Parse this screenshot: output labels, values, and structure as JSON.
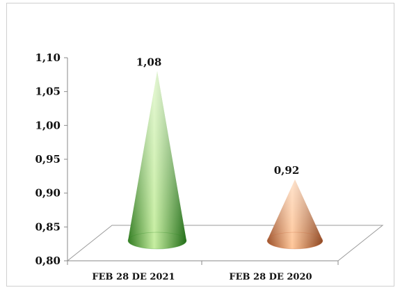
{
  "chart_data": {
    "type": "bar",
    "shape": "cone",
    "title": "",
    "xlabel": "",
    "ylabel": "",
    "categories": [
      "FEB 28 DE 2021",
      "FEB 28 DE 2020"
    ],
    "values": [
      1.08,
      0.92
    ],
    "value_labels": [
      "1,08",
      "0,92"
    ],
    "ylim": [
      0.8,
      1.1
    ],
    "yticks": [
      0.8,
      0.85,
      0.9,
      0.95,
      1.0,
      1.05,
      1.1
    ],
    "ytick_labels": [
      "0,80",
      "0,85",
      "0,90",
      "0,95",
      "1,00",
      "1,05",
      "1,10"
    ],
    "grid": false,
    "legend": "none",
    "colors": [
      "#2e8b22",
      "#c8663a"
    ]
  }
}
